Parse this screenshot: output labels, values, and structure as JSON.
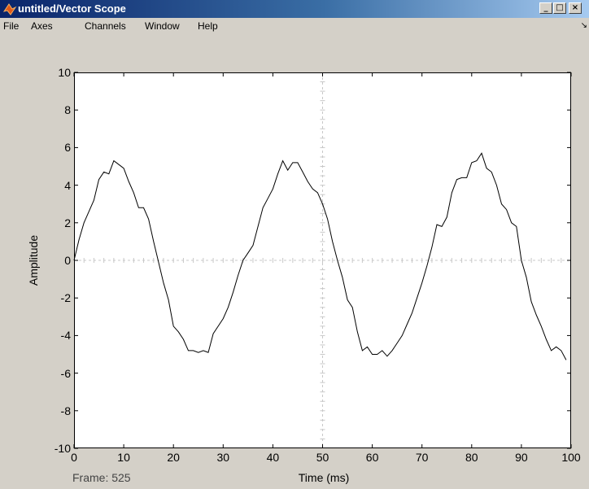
{
  "window": {
    "title": "untitled/Vector Scope",
    "minimize_glyph": "_",
    "maximize_glyph": "□",
    "close_glyph": "×",
    "dock_glyph": "↘"
  },
  "menu": [
    "File",
    "Axes",
    "Channels",
    "Window",
    "Help"
  ],
  "status": {
    "frame": "Frame: 525"
  },
  "colors": {
    "title_bar": "#0a246a",
    "plot_background": "#ffffff",
    "trace": "#000000",
    "grid": "#c8c8c8"
  },
  "chart_data": {
    "type": "line",
    "title": "",
    "xlabel": "Time (ms)",
    "ylabel": "Amplitude",
    "xlim": [
      0,
      100
    ],
    "ylim": [
      -10,
      10
    ],
    "xticks": [
      "0",
      "10",
      "20",
      "30",
      "40",
      "50",
      "60",
      "70",
      "80",
      "90",
      "100"
    ],
    "yticks": [
      "10",
      "8",
      "6",
      "4",
      "2",
      "0",
      "-2",
      "-4",
      "-6",
      "-8",
      "-10"
    ],
    "grid": "crosshair at x=50 and y=0",
    "series": [
      {
        "x": [
          0,
          1,
          2,
          3,
          4,
          5,
          6,
          7,
          8,
          9,
          10,
          11,
          12,
          13,
          14,
          15,
          16,
          17,
          18,
          19,
          20,
          21,
          22,
          23,
          24,
          25,
          26,
          27,
          28,
          29,
          30,
          31,
          32,
          33,
          34,
          35,
          36,
          37,
          38,
          39,
          40,
          41,
          42,
          43,
          44,
          45,
          46,
          47,
          48,
          49,
          50,
          51,
          52,
          53,
          54,
          55,
          56,
          57,
          58,
          59,
          60,
          61,
          62,
          63,
          64,
          65,
          66,
          67,
          68,
          69,
          70,
          71,
          72,
          73,
          74,
          75,
          76,
          77,
          78,
          79,
          80,
          81,
          82,
          83,
          84,
          85,
          86,
          87,
          88,
          89,
          90,
          91,
          92,
          93,
          94,
          95,
          96,
          97,
          98,
          99
        ],
        "y": [
          0,
          1.1,
          2.0,
          2.6,
          3.2,
          4.3,
          4.7,
          4.6,
          5.3,
          5.1,
          4.9,
          4.2,
          3.6,
          2.8,
          2.8,
          2.2,
          1.0,
          -0.1,
          -1.2,
          -2.1,
          -3.5,
          -3.8,
          -4.2,
          -4.8,
          -4.8,
          -4.9,
          -4.8,
          -4.9,
          -3.9,
          -3.5,
          -3.1,
          -2.5,
          -1.7,
          -0.8,
          0,
          0.4,
          0.8,
          1.8,
          2.8,
          3.3,
          3.8,
          4.6,
          5.3,
          4.8,
          5.2,
          5.2,
          4.7,
          4.2,
          3.8,
          3.6,
          3.0,
          2.2,
          1.0,
          0,
          -0.9,
          -2.1,
          -2.5,
          -3.8,
          -4.8,
          -4.6,
          -5.0,
          -5.0,
          -4.8,
          -5.1,
          -4.8,
          -4.4,
          -4.0,
          -3.4,
          -2.8,
          -2.0,
          -1.2,
          -0.3,
          0.7,
          1.9,
          1.8,
          2.3,
          3.6,
          4.3,
          4.4,
          4.4,
          5.2,
          5.3,
          5.7,
          4.9,
          4.7,
          4.0,
          3.0,
          2.7,
          2.0,
          1.8,
          0,
          -0.9,
          -2.2,
          -2.9,
          -3.5,
          -4.2,
          -4.8,
          -4.6,
          -4.8,
          -5.3
        ]
      }
    ]
  }
}
